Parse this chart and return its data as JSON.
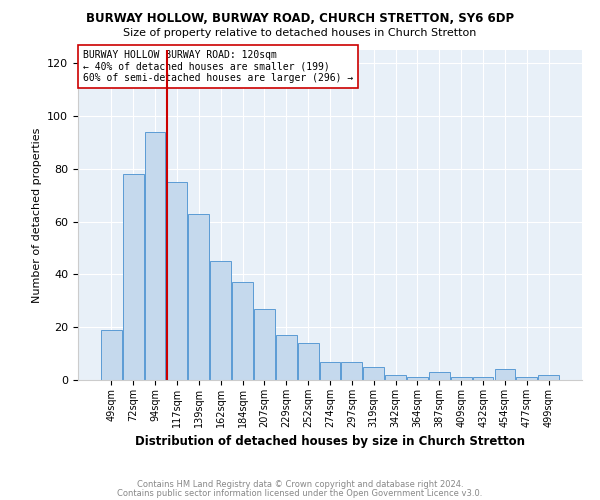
{
  "title1": "BURWAY HOLLOW, BURWAY ROAD, CHURCH STRETTON, SY6 6DP",
  "title2": "Size of property relative to detached houses in Church Stretton",
  "xlabel": "Distribution of detached houses by size in Church Stretton",
  "ylabel": "Number of detached properties",
  "categories": [
    "49sqm",
    "72sqm",
    "94sqm",
    "117sqm",
    "139sqm",
    "162sqm",
    "184sqm",
    "207sqm",
    "229sqm",
    "252sqm",
    "274sqm",
    "297sqm",
    "319sqm",
    "342sqm",
    "364sqm",
    "387sqm",
    "409sqm",
    "432sqm",
    "454sqm",
    "477sqm",
    "499sqm"
  ],
  "values": [
    19,
    78,
    94,
    75,
    63,
    45,
    37,
    27,
    17,
    14,
    7,
    7,
    5,
    2,
    1,
    3,
    1,
    1,
    4,
    1,
    2
  ],
  "bar_color": "#c5d9ed",
  "bar_edge_color": "#5b9bd5",
  "vline_x_index": 3,
  "vline_color": "#cc0000",
  "annotation_line1": "BURWAY HOLLOW BURWAY ROAD: 120sqm",
  "annotation_line2": "← 40% of detached houses are smaller (199)",
  "annotation_line3": "60% of semi-detached houses are larger (296) →",
  "annotation_box_color": "#ffffff",
  "annotation_border_color": "#cc0000",
  "ylim": [
    0,
    125
  ],
  "yticks": [
    0,
    20,
    40,
    60,
    80,
    100,
    120
  ],
  "footer1": "Contains HM Land Registry data © Crown copyright and database right 2024.",
  "footer2": "Contains public sector information licensed under the Open Government Licence v3.0.",
  "background_color": "#e8f0f8",
  "grid_color": "#ffffff"
}
